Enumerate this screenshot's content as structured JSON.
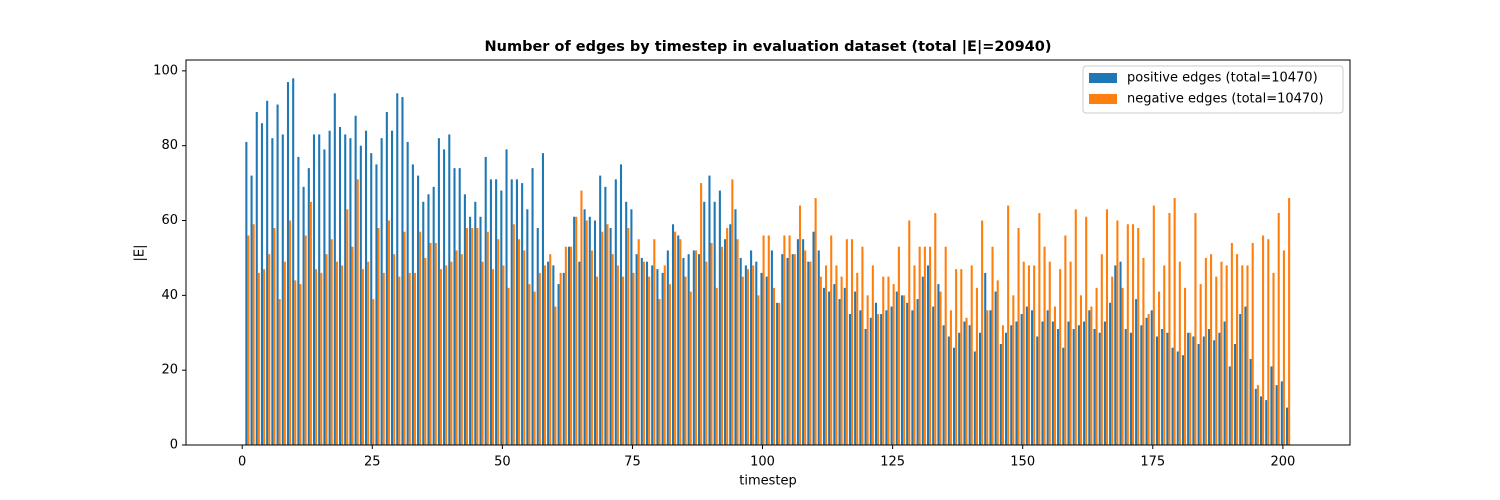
{
  "chart_data": {
    "type": "bar",
    "title": "Number of edges by timestep in evaluation dataset (total |E|=20940)",
    "xlabel": "timestep",
    "ylabel": "|E|",
    "legend": "upper right",
    "xlim": [
      -10.8,
      212.9
    ],
    "ylim": [
      0,
      102.9
    ],
    "xticks": [
      0,
      25,
      50,
      75,
      100,
      125,
      150,
      175,
      200
    ],
    "yticks": [
      0,
      20,
      40,
      60,
      80,
      100
    ],
    "x": [
      1,
      2,
      3,
      4,
      5,
      6,
      7,
      8,
      9,
      10,
      11,
      12,
      13,
      14,
      15,
      16,
      17,
      18,
      19,
      20,
      21,
      22,
      23,
      24,
      25,
      26,
      27,
      28,
      29,
      30,
      31,
      32,
      33,
      34,
      35,
      36,
      37,
      38,
      39,
      40,
      41,
      42,
      43,
      44,
      45,
      46,
      47,
      48,
      49,
      50,
      51,
      52,
      53,
      54,
      55,
      56,
      57,
      58,
      59,
      60,
      61,
      62,
      63,
      64,
      65,
      66,
      67,
      68,
      69,
      70,
      71,
      72,
      73,
      74,
      75,
      76,
      77,
      78,
      79,
      80,
      81,
      82,
      83,
      84,
      85,
      86,
      87,
      88,
      89,
      90,
      91,
      92,
      93,
      94,
      95,
      96,
      97,
      98,
      99,
      100,
      101,
      102,
      103,
      104,
      105,
      106,
      107,
      108,
      109,
      110,
      111,
      112,
      113,
      114,
      115,
      116,
      117,
      118,
      119,
      120,
      121,
      122,
      123,
      124,
      125,
      126,
      127,
      128,
      129,
      130,
      131,
      132,
      133,
      134,
      135,
      136,
      137,
      138,
      139,
      140,
      141,
      142,
      143,
      144,
      145,
      146,
      147,
      148,
      149,
      150,
      151,
      152,
      153,
      154,
      155,
      156,
      157,
      158,
      159,
      160,
      161,
      162,
      163,
      164,
      165,
      166,
      167,
      168,
      169,
      170,
      171,
      172,
      173,
      174,
      175,
      176,
      177,
      178,
      179,
      180,
      181,
      182,
      183,
      184,
      185,
      186,
      187,
      188,
      189,
      190,
      191,
      192,
      193,
      194,
      195,
      196,
      197,
      198,
      199,
      200,
      201
    ],
    "series": [
      {
        "name": "positive edges (total=10470)",
        "color": "#1f77b4",
        "values": [
          81,
          72,
          89,
          86,
          92,
          82,
          91,
          83,
          97,
          98,
          77,
          69,
          74,
          83,
          83,
          79,
          84,
          94,
          85,
          83,
          82,
          88,
          80,
          84,
          78,
          75,
          82,
          89,
          84,
          94,
          93,
          81,
          75,
          72,
          65,
          67,
          69,
          82,
          79,
          83,
          74,
          74,
          67,
          61,
          65,
          61,
          77,
          71,
          71,
          68,
          79,
          71,
          71,
          70,
          63,
          74,
          58,
          78,
          49,
          48,
          43,
          46,
          53,
          61,
          49,
          63,
          61,
          60,
          72,
          69,
          58,
          71,
          75,
          65,
          63,
          51,
          50,
          49,
          48,
          47,
          46,
          52,
          59,
          56,
          50,
          51,
          52,
          51,
          65,
          72,
          65,
          68,
          55,
          59,
          63,
          50,
          48,
          52,
          49,
          46,
          45,
          52,
          38,
          51,
          50,
          51,
          55,
          55,
          49,
          57,
          52,
          42,
          41,
          43,
          39,
          42,
          35,
          41,
          36,
          31,
          34,
          38,
          35,
          36,
          37,
          41,
          40,
          38,
          36,
          39,
          45,
          48,
          37,
          43,
          32,
          29,
          26,
          30,
          33,
          32,
          25,
          30,
          46,
          36,
          41,
          27,
          30,
          32,
          33,
          35,
          37,
          36,
          29,
          33,
          36,
          33,
          31,
          26,
          33,
          31,
          32,
          33,
          36,
          31,
          30,
          33,
          38,
          48,
          49,
          31,
          30,
          39,
          32,
          34,
          36,
          29,
          31,
          30,
          26,
          25,
          24,
          30,
          29,
          27,
          29,
          31,
          28,
          30,
          33,
          21,
          27,
          35,
          37,
          23,
          15,
          13,
          12,
          21,
          16,
          17,
          10
        ]
      },
      {
        "name": "negative edges (total=10470)",
        "color": "#ff7f0e",
        "values": [
          56,
          59,
          46,
          47,
          51,
          58,
          39,
          49,
          60,
          44,
          43,
          56,
          65,
          47,
          46,
          51,
          55,
          49,
          48,
          63,
          53,
          71,
          47,
          49,
          39,
          58,
          46,
          60,
          51,
          45,
          57,
          46,
          46,
          57,
          50,
          54,
          54,
          47,
          48,
          49,
          52,
          51,
          58,
          58,
          58,
          49,
          57,
          47,
          55,
          48,
          42,
          59,
          55,
          52,
          43,
          41,
          46,
          48,
          51,
          37,
          46,
          53,
          53,
          61,
          68,
          60,
          52,
          45,
          57,
          59,
          51,
          48,
          45,
          58,
          46,
          55,
          49,
          45,
          55,
          39,
          48,
          43,
          57,
          55,
          45,
          41,
          52,
          70,
          49,
          54,
          42,
          53,
          58,
          71,
          55,
          45,
          47,
          48,
          40,
          56,
          56,
          42,
          38,
          56,
          56,
          51,
          64,
          52,
          49,
          66,
          45,
          48,
          56,
          48,
          45,
          55,
          55,
          46,
          53,
          40,
          48,
          35,
          45,
          45,
          43,
          53,
          40,
          60,
          48,
          53,
          53,
          53,
          62,
          41,
          53,
          36,
          47,
          47,
          34,
          48,
          42,
          60,
          36,
          53,
          44,
          32,
          64,
          40,
          58,
          49,
          48,
          48,
          62,
          53,
          49,
          37,
          47,
          56,
          49,
          63,
          40,
          61,
          37,
          42,
          51,
          63,
          45,
          60,
          42,
          59,
          59,
          58,
          50,
          35,
          64,
          41,
          48,
          62,
          66,
          49,
          42,
          30,
          62,
          43,
          50,
          51,
          45,
          49,
          48,
          54,
          51,
          48,
          48,
          54,
          16,
          56,
          55,
          46,
          62,
          52,
          66
        ]
      }
    ]
  }
}
